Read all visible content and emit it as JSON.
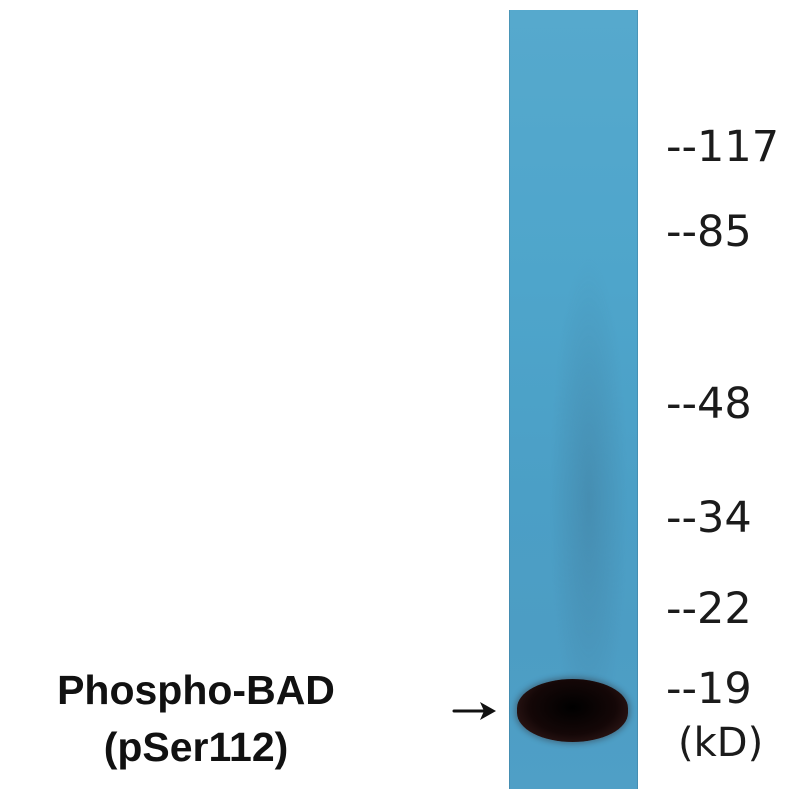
{
  "figure": {
    "lane_color": "#4ea5cb",
    "band_color": "#140707",
    "markers": [
      "--117",
      "--85",
      "--48",
      "--34",
      "--22",
      "--19"
    ],
    "unit": "(kD)",
    "label": {
      "line1": "Phospho-BAD",
      "line2": "(pSer112)"
    },
    "arrow_icon": "arrow-right-icon"
  }
}
